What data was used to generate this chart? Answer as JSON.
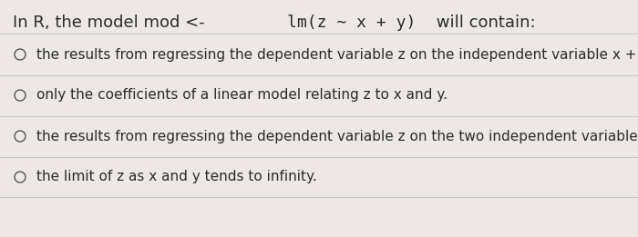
{
  "title_normal1": "In R, the model mod <- ",
  "title_code": "lm(z ∼ x + y)",
  "title_normal2": " will contain:",
  "background_color": "#ede8e5",
  "text_color": "#2b2b2b",
  "divider_color": "#c8c8c8",
  "options": [
    "the results from regressing the dependent variable z on the independent variable x + y.",
    "only the coefficients of a linear model relating z to x and y.",
    "the results from regressing the dependent variable z on the two independent variables x and y.",
    "the limit of z as x and y tends to infinity."
  ],
  "circle_color": "#555555",
  "font_size_title": 13,
  "font_size_options": 11,
  "figsize": [
    7.0,
    2.61
  ],
  "dpi": 100
}
